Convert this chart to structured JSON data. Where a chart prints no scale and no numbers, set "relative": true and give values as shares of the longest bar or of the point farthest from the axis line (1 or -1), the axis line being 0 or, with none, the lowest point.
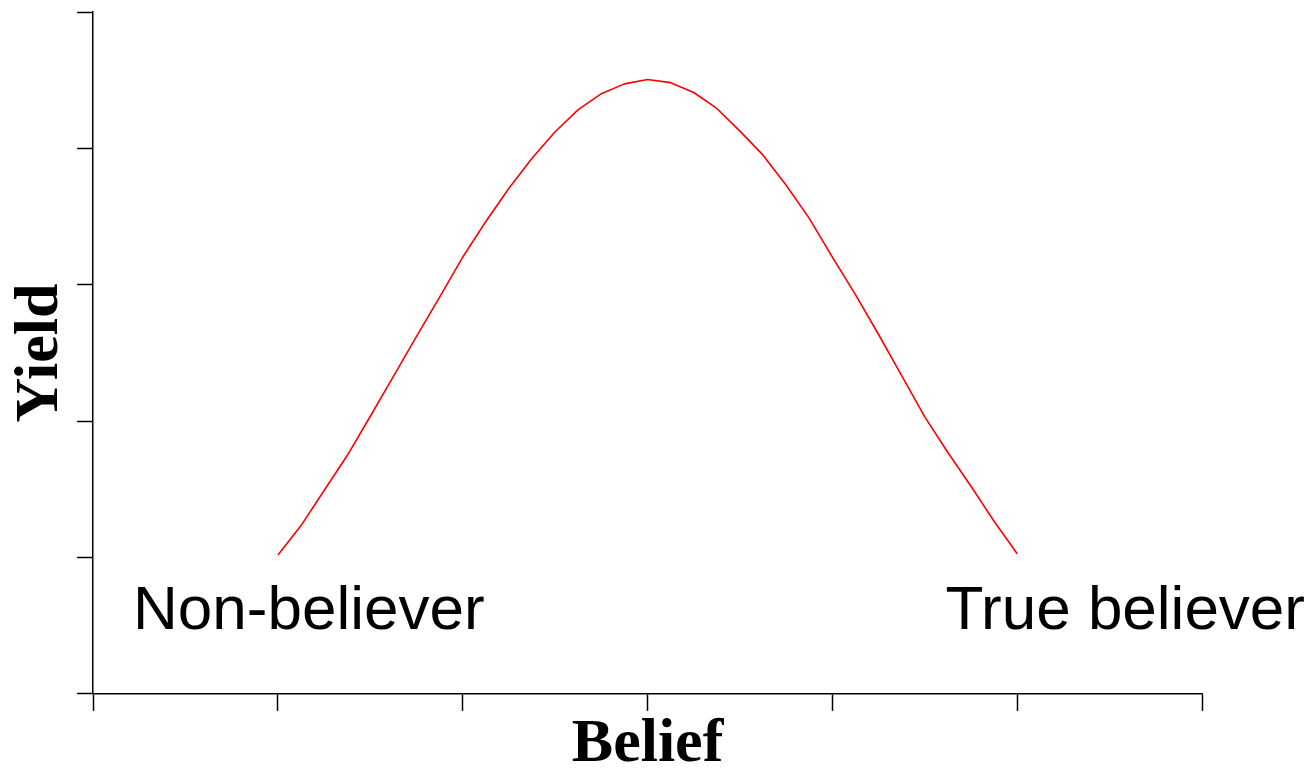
{
  "chart_data": {
    "type": "line",
    "xlabel": "Belief",
    "ylabel": "Yield",
    "relative": true,
    "categories": [
      null,
      null,
      null,
      null,
      null,
      null,
      null,
      null,
      null,
      null,
      null,
      null,
      null,
      null,
      null,
      null,
      null,
      null,
      null,
      null,
      null,
      null,
      null,
      null,
      null,
      null,
      null,
      null,
      null,
      null,
      null,
      null,
      null,
      null,
      null,
      null,
      null,
      null,
      null,
      null,
      null,
      null,
      null,
      null,
      null,
      null,
      null,
      null,
      null
    ],
    "color": "#ff0000",
    "values": [
      null,
      null,
      null,
      null,
      null,
      null,
      null,
      null,
      0.226,
      0.274,
      0.331,
      0.388,
      0.452,
      0.517,
      0.582,
      0.646,
      0.711,
      0.769,
      0.823,
      0.872,
      0.915,
      0.951,
      0.977,
      0.993,
      1,
      0.995,
      0.979,
      0.953,
      0.916,
      0.877,
      0.828,
      0.774,
      0.711,
      0.65,
      0.585,
      0.518,
      0.451,
      0.393,
      0.338,
      0.281,
      0.228,
      null,
      null,
      null,
      null,
      null,
      null,
      null,
      null
    ],
    "annotations": [
      "Non-believer",
      "True believer"
    ]
  }
}
